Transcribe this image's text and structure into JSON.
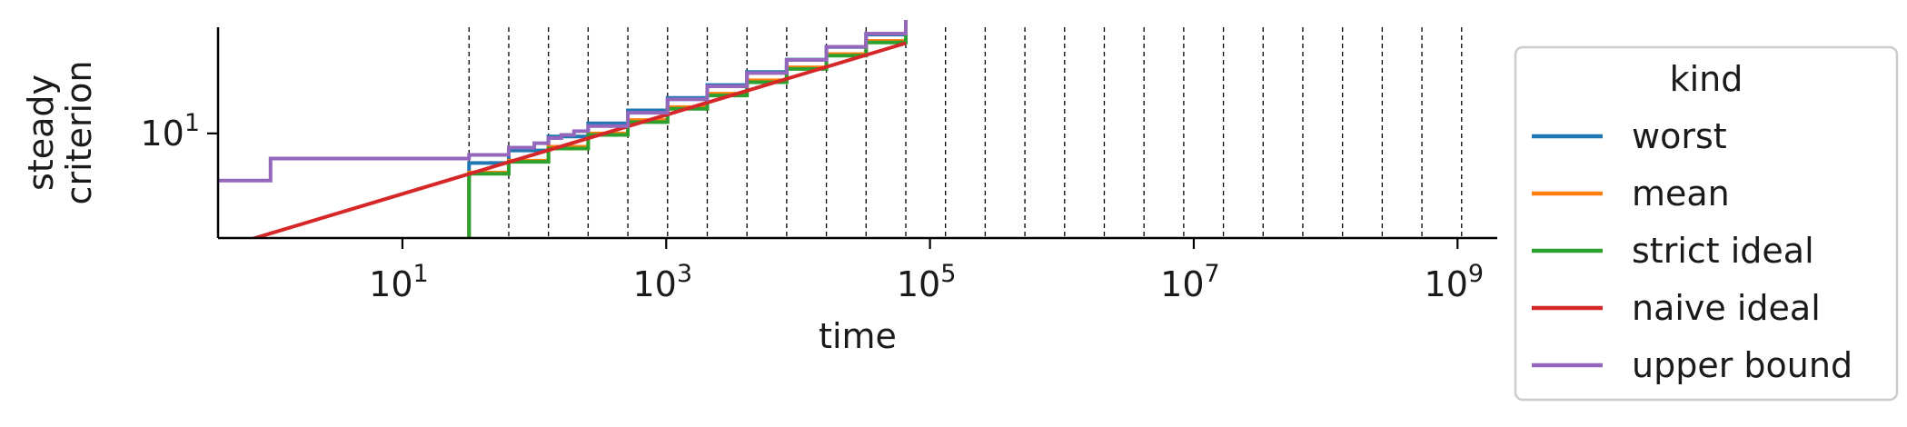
{
  "chart_data": {
    "type": "line",
    "xlabel": "time",
    "ylabel": [
      "steady",
      "criterion"
    ],
    "xscale": "log",
    "yscale": "log",
    "xlim": [
      0.4,
      2000000000.0
    ],
    "ylim": [
      2.55,
      40
    ],
    "x_ticks": [
      {
        "value": 10,
        "base": "10",
        "exp": "1"
      },
      {
        "value": 1000,
        "base": "10",
        "exp": "3"
      },
      {
        "value": 100000,
        "base": "10",
        "exp": "5"
      },
      {
        "value": 10000000,
        "base": "10",
        "exp": "7"
      },
      {
        "value": 1000000000,
        "base": "10",
        "exp": "9"
      }
    ],
    "y_ticks": [
      {
        "value": 10,
        "base": "10",
        "exp": "1"
      }
    ],
    "vlines": [
      32,
      64,
      128,
      256,
      512,
      1024,
      2048,
      4096,
      8192,
      16384,
      32768,
      65536,
      131072,
      262144,
      524288,
      1048576,
      2097152,
      4194304,
      8388608,
      16777216,
      33554432,
      67108864,
      134217728,
      268435456,
      536870912,
      1073741824,
      2147483648
    ],
    "legend": {
      "title": "kind",
      "placement": "outside-right",
      "entries": [
        "worst",
        "mean",
        "strict ideal",
        "naive ideal",
        "upper bound"
      ]
    },
    "series": [
      {
        "name": "worst",
        "color": "#1f77b4",
        "step": true,
        "x": [
          31,
          32,
          64,
          128,
          256,
          512,
          1024,
          2048,
          4096,
          8192,
          16384,
          32768,
          65536
        ],
        "y": [
          0.5,
          6.8,
          8.0,
          9.6,
          11.4,
          13.5,
          15.9,
          18.8,
          22.3,
          26.2,
          30.9,
          36.4,
          42.0
        ]
      },
      {
        "name": "mean",
        "color": "#ff7f0e",
        "step": true,
        "x": [
          31,
          32,
          64,
          128,
          256,
          512,
          1024,
          2048,
          4096,
          8192,
          16384,
          32768,
          65536
        ],
        "y": [
          0.5,
          6.0,
          7.0,
          8.4,
          10.0,
          11.9,
          14.1,
          16.8,
          20.0,
          23.7,
          28.2,
          33.5,
          38.0
        ]
      },
      {
        "name": "strict ideal",
        "color": "#2ca02c",
        "step": true,
        "x": [
          31,
          32,
          64,
          128,
          256,
          512,
          1024,
          2048,
          4096,
          8192,
          16384,
          32768,
          65536
        ],
        "y": [
          0.5,
          5.9,
          6.9,
          8.2,
          9.8,
          11.6,
          13.8,
          16.4,
          19.5,
          23.2,
          27.6,
          32.8,
          37.5
        ]
      },
      {
        "name": "naive ideal",
        "color": "#d62728",
        "step": false,
        "x": [
          0.5,
          65536
        ],
        "y": [
          2.3,
          32.5
        ]
      },
      {
        "name": "upper bound",
        "color": "#9467bd",
        "step": true,
        "x": [
          0.4,
          1,
          32,
          64,
          100,
          128,
          160,
          200,
          256,
          512,
          1024,
          2048,
          4096,
          8192,
          16384,
          32768,
          65536
        ],
        "y": [
          5.4,
          7.2,
          7.55,
          8.3,
          8.8,
          9.4,
          9.8,
          10.3,
          11.0,
          13.1,
          15.6,
          18.5,
          22.0,
          26.1,
          31.0,
          36.8,
          44.0
        ]
      }
    ]
  }
}
